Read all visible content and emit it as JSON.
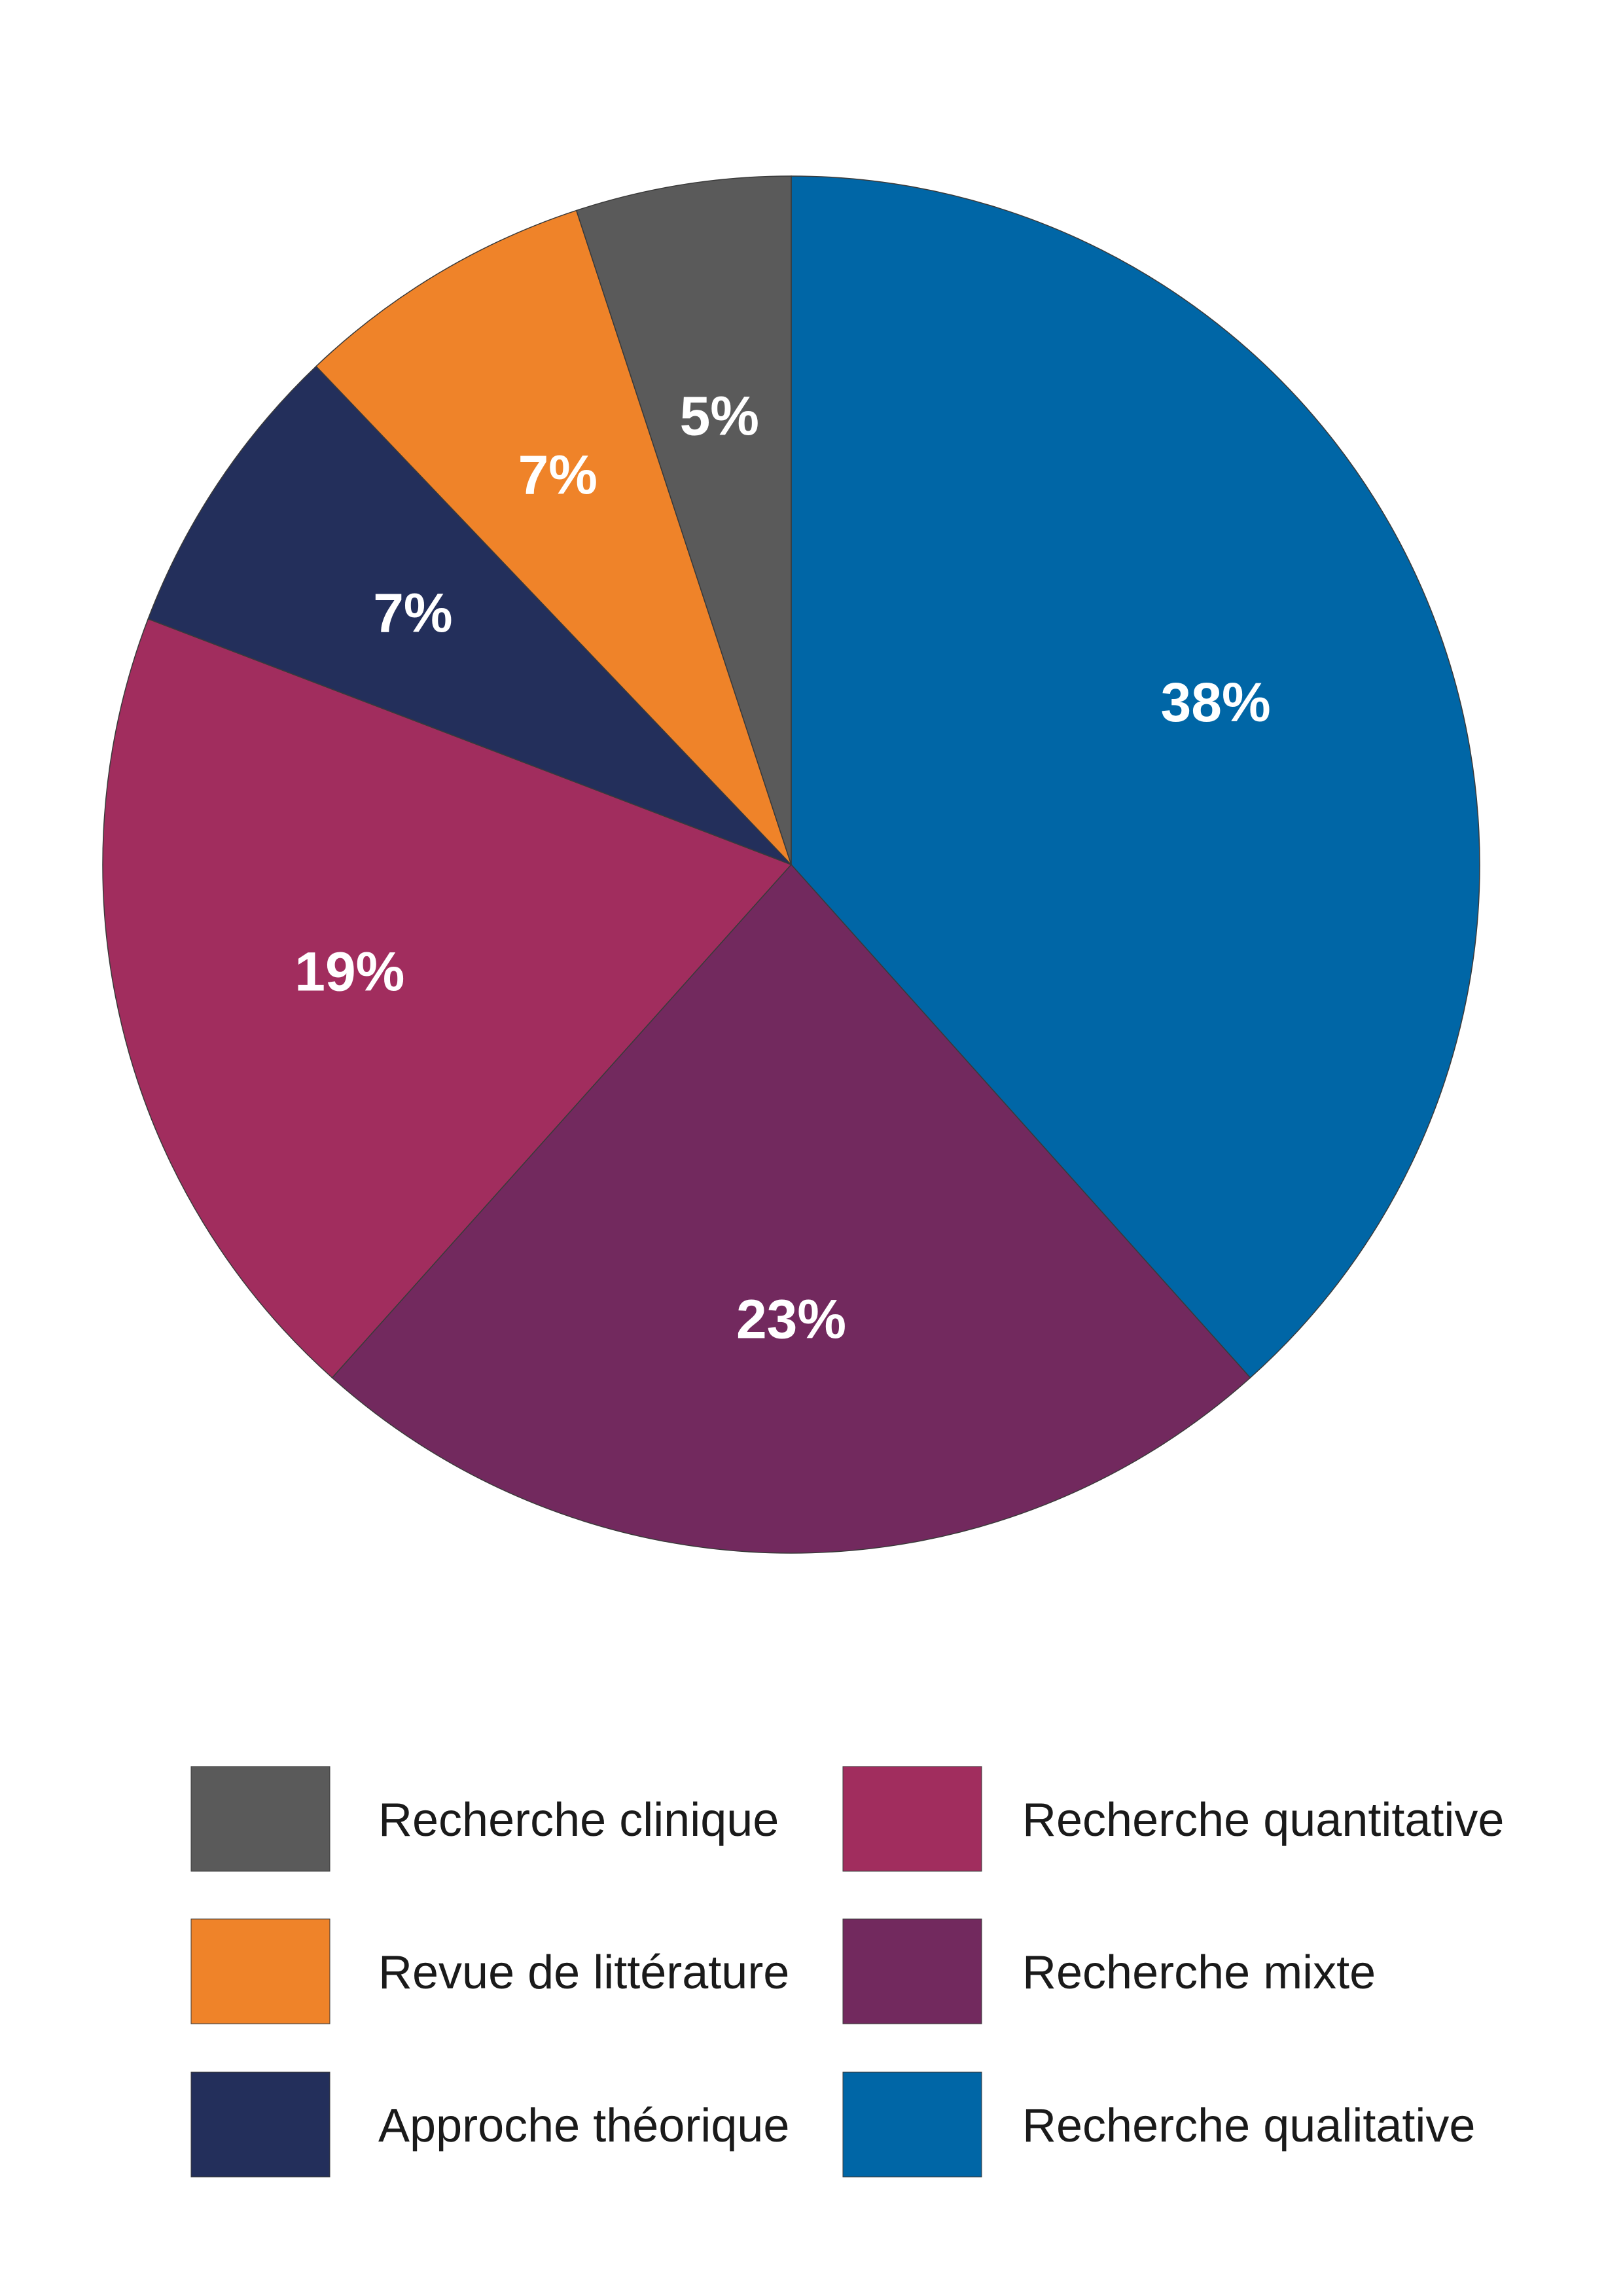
{
  "chart_data": {
    "type": "pie",
    "title": "",
    "slices": [
      {
        "name": "Recherche qualitative",
        "value": 38,
        "label": "38%",
        "color": "#0066A6"
      },
      {
        "name": "Recherche mixte",
        "value": 23,
        "label": "23%",
        "color": "#72295E"
      },
      {
        "name": "Recherche quantitative",
        "value": 19,
        "label": "19%",
        "color": "#A12D5E"
      },
      {
        "name": "Approche théorique",
        "value": 7,
        "label": "7%",
        "color": "#232F5B"
      },
      {
        "name": "Revue de littérature",
        "value": 7,
        "label": "7%",
        "color": "#EF8329"
      },
      {
        "name": "Recherche clinique",
        "value": 5,
        "label": "5%",
        "color": "#5A5A5A"
      }
    ],
    "start_angle": "12 o'clock",
    "direction": "clockwise",
    "legend": {
      "placement": "bottom",
      "columns": [
        [
          "Recherche clinique",
          "Revue de littérature",
          "Approche théorique"
        ],
        [
          "Recherche quantitative",
          "Recherche mixte",
          "Recherche qualitative"
        ]
      ]
    }
  }
}
